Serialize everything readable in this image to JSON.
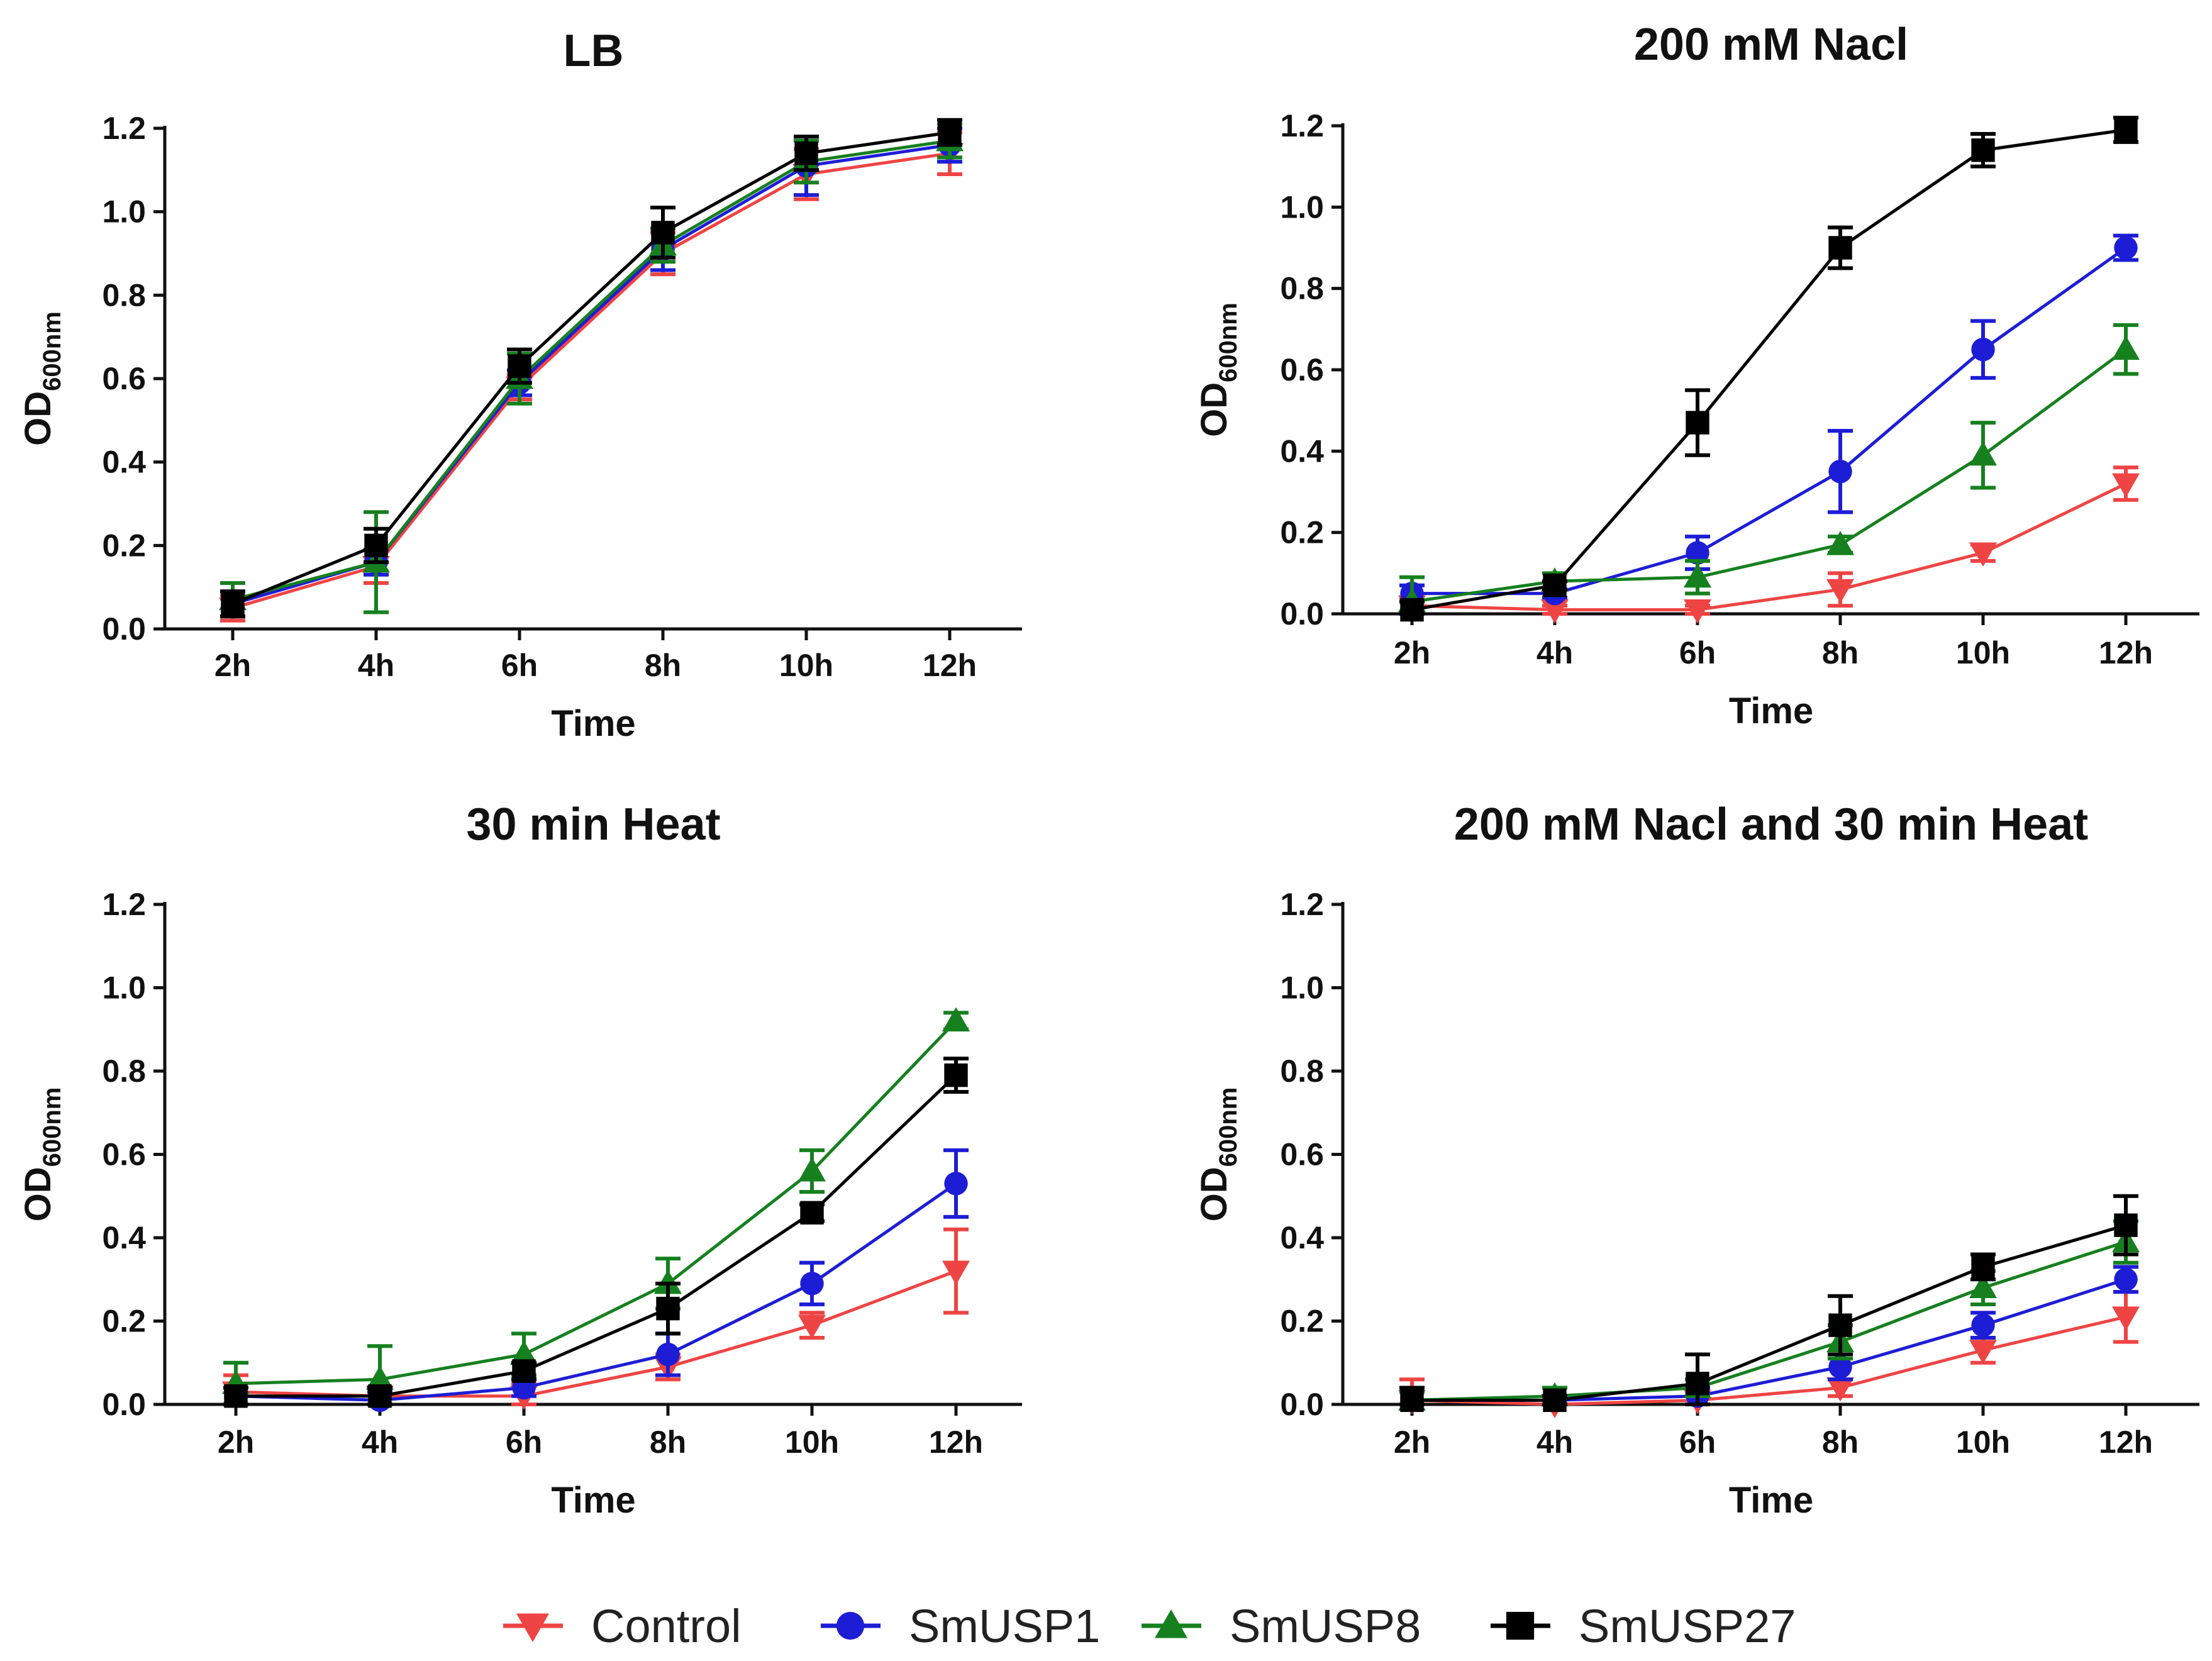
{
  "chart_data": [
    {
      "type": "line",
      "title": "LB",
      "xlabel": "Time",
      "ylabel": "OD",
      "ylabel_sub": "600nm",
      "categories": [
        "2h",
        "4h",
        "6h",
        "8h",
        "10h",
        "12h"
      ],
      "ylim": [
        0,
        1.2
      ],
      "yticks": [
        "0.0",
        "0.2",
        "0.4",
        "0.6",
        "0.8",
        "1.0",
        "1.2"
      ],
      "series": [
        {
          "name": "Control",
          "values": [
            0.05,
            0.15,
            0.58,
            0.9,
            1.09,
            1.14
          ],
          "errors": [
            0.03,
            0.04,
            0.03,
            0.05,
            0.06,
            0.05
          ]
        },
        {
          "name": "SmUSP1",
          "values": [
            0.06,
            0.16,
            0.59,
            0.91,
            1.11,
            1.16
          ],
          "errors": [
            0.03,
            0.03,
            0.03,
            0.05,
            0.07,
            0.04
          ]
        },
        {
          "name": "SmUSP8",
          "values": [
            0.07,
            0.16,
            0.6,
            0.92,
            1.12,
            1.17
          ],
          "errors": [
            0.04,
            0.12,
            0.06,
            0.04,
            0.05,
            0.04
          ]
        },
        {
          "name": "SmUSP27",
          "values": [
            0.06,
            0.2,
            0.63,
            0.95,
            1.14,
            1.19
          ],
          "errors": [
            0.03,
            0.04,
            0.04,
            0.06,
            0.04,
            0.03
          ]
        }
      ]
    },
    {
      "type": "line",
      "title": "200 mM Nacl",
      "xlabel": "Time",
      "ylabel": "OD",
      "ylabel_sub": "600nm",
      "categories": [
        "2h",
        "4h",
        "6h",
        "8h",
        "10h",
        "12h"
      ],
      "ylim": [
        0,
        1.2
      ],
      "yticks": [
        "0.0",
        "0.2",
        "0.4",
        "0.6",
        "0.8",
        "1.0",
        "1.2"
      ],
      "series": [
        {
          "name": "Control",
          "values": [
            0.02,
            0.01,
            0.01,
            0.06,
            0.15,
            0.32
          ],
          "errors": [
            0.02,
            0.01,
            0.01,
            0.04,
            0.02,
            0.04
          ]
        },
        {
          "name": "SmUSP1",
          "values": [
            0.05,
            0.05,
            0.15,
            0.35,
            0.65,
            0.9
          ],
          "errors": [
            0.02,
            0.01,
            0.04,
            0.1,
            0.07,
            0.03
          ]
        },
        {
          "name": "SmUSP8",
          "values": [
            0.03,
            0.08,
            0.09,
            0.17,
            0.39,
            0.65
          ],
          "errors": [
            0.06,
            0.02,
            0.04,
            0.02,
            0.08,
            0.06
          ]
        },
        {
          "name": "SmUSP27",
          "values": [
            0.01,
            0.07,
            0.47,
            0.9,
            1.14,
            1.19
          ],
          "errors": [
            0.02,
            0.01,
            0.08,
            0.05,
            0.04,
            0.03
          ]
        }
      ]
    },
    {
      "type": "line",
      "title": "30 min Heat",
      "xlabel": "Time",
      "ylabel": "OD",
      "ylabel_sub": "600nm",
      "categories": [
        "2h",
        "4h",
        "6h",
        "8h",
        "10h",
        "12h"
      ],
      "ylim": [
        0,
        1.2
      ],
      "yticks": [
        "0.0",
        "0.2",
        "0.4",
        "0.6",
        "0.8",
        "1.0",
        "1.2"
      ],
      "series": [
        {
          "name": "Control",
          "values": [
            0.03,
            0.02,
            0.02,
            0.09,
            0.19,
            0.32
          ],
          "errors": [
            0.04,
            0.02,
            0.03,
            0.03,
            0.03,
            0.1
          ]
        },
        {
          "name": "SmUSP1",
          "values": [
            0.02,
            0.01,
            0.04,
            0.12,
            0.29,
            0.53
          ],
          "errors": [
            0.02,
            0.02,
            0.02,
            0.05,
            0.05,
            0.08
          ]
        },
        {
          "name": "SmUSP8",
          "values": [
            0.05,
            0.06,
            0.12,
            0.29,
            0.56,
            0.92
          ],
          "errors": [
            0.05,
            0.08,
            0.05,
            0.06,
            0.05,
            0.02
          ]
        },
        {
          "name": "SmUSP27",
          "values": [
            0.02,
            0.02,
            0.08,
            0.23,
            0.46,
            0.79
          ],
          "errors": [
            0.02,
            0.02,
            0.02,
            0.06,
            0.02,
            0.04
          ]
        }
      ]
    },
    {
      "type": "line",
      "title": "200 mM Nacl and 30 min Heat",
      "xlabel": "Time",
      "ylabel": "OD",
      "ylabel_sub": "600nm",
      "categories": [
        "2h",
        "4h",
        "6h",
        "8h",
        "10h",
        "12h"
      ],
      "ylim": [
        0,
        1.2
      ],
      "yticks": [
        "0.0",
        "0.2",
        "0.4",
        "0.6",
        "0.8",
        "1.0",
        "1.2"
      ],
      "series": [
        {
          "name": "Control",
          "values": [
            0.01,
            0.0,
            0.01,
            0.04,
            0.13,
            0.21
          ],
          "errors": [
            0.05,
            0.01,
            0.02,
            0.02,
            0.03,
            0.06
          ]
        },
        {
          "name": "SmUSP1",
          "values": [
            0.01,
            0.01,
            0.02,
            0.09,
            0.19,
            0.3
          ],
          "errors": [
            0.02,
            0.01,
            0.02,
            0.03,
            0.03,
            0.03
          ]
        },
        {
          "name": "SmUSP8",
          "values": [
            0.01,
            0.02,
            0.04,
            0.15,
            0.28,
            0.39
          ],
          "errors": [
            0.02,
            0.02,
            0.02,
            0.04,
            0.04,
            0.05
          ]
        },
        {
          "name": "SmUSP27",
          "values": [
            0.01,
            0.01,
            0.05,
            0.19,
            0.33,
            0.43
          ],
          "errors": [
            0.03,
            0.01,
            0.07,
            0.07,
            0.03,
            0.07
          ]
        }
      ]
    }
  ],
  "legend": {
    "position": "bottom-center",
    "items": [
      {
        "name": "Control",
        "color": "#ef4444",
        "marker": "triangle-down"
      },
      {
        "name": "SmUSP1",
        "color": "#1d1dd6",
        "marker": "circle"
      },
      {
        "name": "SmUSP8",
        "color": "#16801f",
        "marker": "triangle-up"
      },
      {
        "name": "SmUSP27",
        "color": "#000000",
        "marker": "square"
      }
    ]
  }
}
